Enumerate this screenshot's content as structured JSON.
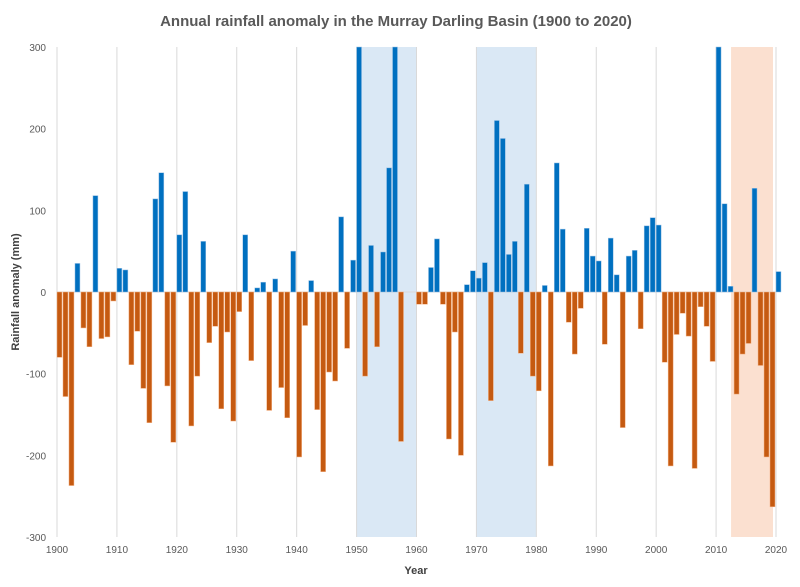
{
  "chart_data": {
    "type": "bar",
    "title": "Annual rainfall anomaly in the Murray Darling Basin (1900 to 2020)",
    "xlabel": "Year",
    "ylabel": "Rainfall anomaly (mm)",
    "xlim": [
      1900,
      2020
    ],
    "ylim": [
      -300,
      300
    ],
    "xticks": [
      1900,
      1910,
      1920,
      1930,
      1940,
      1950,
      1960,
      1970,
      1980,
      1990,
      2000,
      2010,
      2020
    ],
    "yticks": [
      -300,
      -200,
      -100,
      0,
      100,
      200,
      300
    ],
    "grid": "vertical",
    "colors": {
      "positive": "#0070C0",
      "negative": "#C55A11",
      "wet_shade": "#DAE8F5",
      "dry_shade": "#FBE0D0",
      "title": "#595959"
    },
    "shaded_periods": [
      {
        "type": "wet",
        "start": 1950,
        "end": 1960
      },
      {
        "type": "wet",
        "start": 1970,
        "end": 1980
      },
      {
        "type": "dry",
        "start": 2012.5,
        "end": 2019.5
      }
    ],
    "x": [
      1900,
      1901,
      1902,
      1903,
      1904,
      1905,
      1906,
      1907,
      1908,
      1909,
      1910,
      1911,
      1912,
      1913,
      1914,
      1915,
      1916,
      1917,
      1918,
      1919,
      1920,
      1921,
      1922,
      1923,
      1924,
      1925,
      1926,
      1927,
      1928,
      1929,
      1930,
      1931,
      1932,
      1933,
      1934,
      1935,
      1936,
      1937,
      1938,
      1939,
      1940,
      1941,
      1942,
      1943,
      1944,
      1945,
      1946,
      1947,
      1948,
      1949,
      1950,
      1951,
      1952,
      1953,
      1954,
      1955,
      1956,
      1957,
      1958,
      1959,
      1960,
      1961,
      1962,
      1963,
      1964,
      1965,
      1966,
      1967,
      1968,
      1969,
      1970,
      1971,
      1972,
      1973,
      1974,
      1975,
      1976,
      1977,
      1978,
      1979,
      1980,
      1981,
      1982,
      1983,
      1984,
      1985,
      1986,
      1987,
      1988,
      1989,
      1990,
      1991,
      1992,
      1993,
      1994,
      1995,
      1996,
      1997,
      1998,
      1999,
      2000,
      2001,
      2002,
      2003,
      2004,
      2005,
      2006,
      2007,
      2008,
      2009,
      2010,
      2011,
      2012,
      2013,
      2014,
      2015,
      2016,
      2017,
      2018,
      2019,
      2020
    ],
    "values": [
      -80,
      -128,
      -237,
      35,
      -44,
      -67,
      118,
      -57,
      -55,
      -11,
      29,
      27,
      -89,
      -48,
      -118,
      -160,
      114,
      146,
      -115,
      -184,
      70,
      123,
      -164,
      -103,
      62,
      -62,
      -42,
      -143,
      -49,
      -158,
      -24,
      70,
      -84,
      5,
      12,
      -145,
      16,
      -117,
      -154,
      50,
      -202,
      -41,
      14,
      -144,
      -220,
      -98,
      -109,
      92,
      -69,
      39,
      300,
      -103,
      57,
      -67,
      49,
      152,
      300,
      -183,
      0,
      0,
      -15,
      -15,
      30,
      65,
      -15,
      -180,
      -49,
      -200,
      9,
      26,
      17,
      36,
      -133,
      210,
      188,
      46,
      62,
      -75,
      132,
      -103,
      -121,
      8,
      -213,
      158,
      77,
      -37,
      -76,
      -20,
      78,
      44,
      38,
      -64,
      66,
      21,
      -166,
      44,
      51,
      -45,
      81,
      91,
      82,
      -86,
      -213,
      -52,
      -26,
      -54,
      -216,
      -18,
      -42,
      -85,
      300,
      108,
      7,
      -125,
      -76,
      -63,
      127,
      -90,
      -202,
      -263,
      25
    ]
  }
}
